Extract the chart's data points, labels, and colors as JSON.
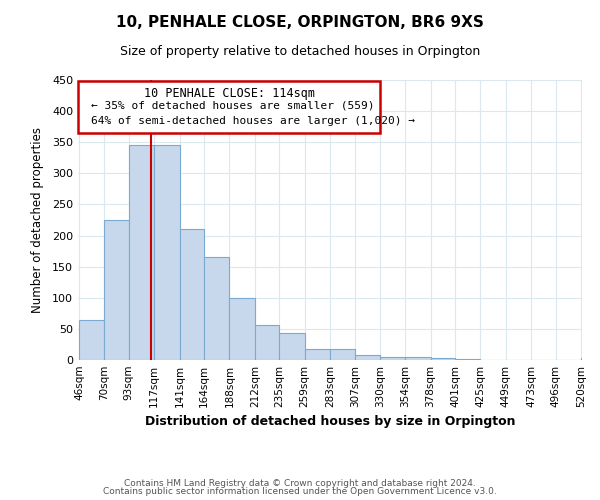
{
  "title": "10, PENHALE CLOSE, ORPINGTON, BR6 9XS",
  "subtitle": "Size of property relative to detached houses in Orpington",
  "xlabel": "Distribution of detached houses by size in Orpington",
  "ylabel": "Number of detached properties",
  "bar_values": [
    65,
    225,
    345,
    345,
    210,
    165,
    100,
    57,
    43,
    18,
    18,
    8,
    5,
    5,
    3,
    2,
    0,
    0,
    0,
    0,
    3
  ],
  "bar_edges": [
    46,
    70,
    93,
    117,
    141,
    164,
    188,
    212,
    235,
    259,
    283,
    307,
    330,
    354,
    378,
    401,
    425,
    449,
    473,
    496,
    520
  ],
  "tick_labels": [
    "46sqm",
    "70sqm",
    "93sqm",
    "117sqm",
    "141sqm",
    "164sqm",
    "188sqm",
    "212sqm",
    "235sqm",
    "259sqm",
    "283sqm",
    "307sqm",
    "330sqm",
    "354sqm",
    "378sqm",
    "401sqm",
    "425sqm",
    "449sqm",
    "473sqm",
    "496sqm",
    "520sqm"
  ],
  "bar_color": "#c8d8ec",
  "bar_edge_color": "#7aaad0",
  "vline_x": 114,
  "vline_color": "#cc0000",
  "ylim": [
    0,
    450
  ],
  "yticks": [
    0,
    50,
    100,
    150,
    200,
    250,
    300,
    350,
    400,
    450
  ],
  "annotation_line1": "10 PENHALE CLOSE: 114sqm",
  "annotation_line2": "← 35% of detached houses are smaller (559)",
  "annotation_line3": "64% of semi-detached houses are larger (1,020) →",
  "footer1": "Contains HM Land Registry data © Crown copyright and database right 2024.",
  "footer2": "Contains public sector information licensed under the Open Government Licence v3.0.",
  "background_color": "#ffffff",
  "grid_color": "#dce8f0"
}
